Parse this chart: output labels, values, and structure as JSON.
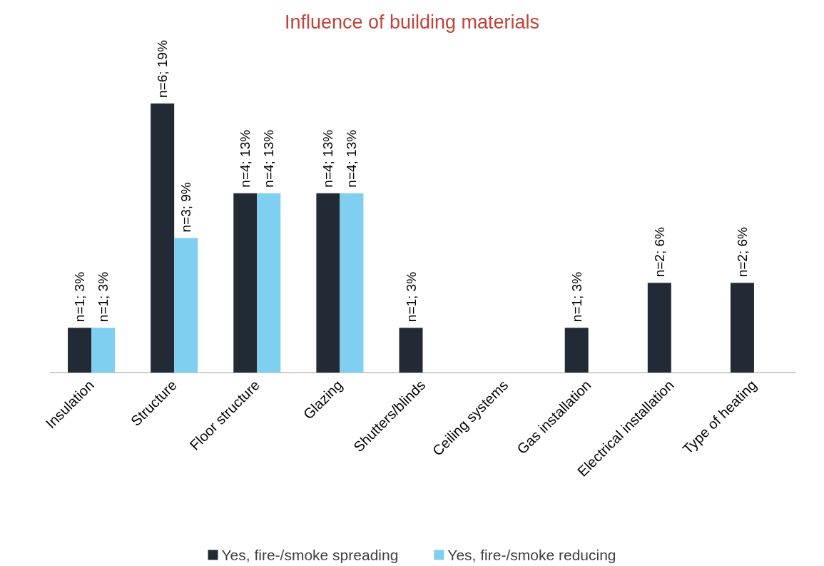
{
  "chart_data": {
    "type": "bar",
    "title": "Influence of building materials",
    "categories": [
      "Insulation",
      "Structure",
      "Floor structure",
      "Glazing",
      "Shutters/blinds",
      "Ceiling systems",
      "Gas installation",
      "Electrical installation",
      "Type of heating"
    ],
    "series": [
      {
        "name": "Yes, fire-/smoke spreading",
        "color": "#222a35",
        "values": [
          1,
          6,
          4,
          4,
          1,
          null,
          1,
          2,
          2
        ],
        "value_labels": [
          "n=1; 3%",
          "n=6; 19%",
          "n=4; 13%",
          "n=4; 13%",
          "n=1; 3%",
          null,
          "n=1; 3%",
          "n=2; 6%",
          "n=2; 6%"
        ]
      },
      {
        "name": "Yes, fire-/smoke reducing",
        "color": "#7fcff0",
        "values": [
          1,
          3,
          4,
          4,
          null,
          null,
          null,
          null,
          null
        ],
        "value_labels": [
          "n=1; 3%",
          "n=3; 9%",
          "n=4; 13%",
          "n=4; 13%",
          null,
          null,
          null,
          null,
          null
        ]
      }
    ],
    "legend": "bottom"
  }
}
